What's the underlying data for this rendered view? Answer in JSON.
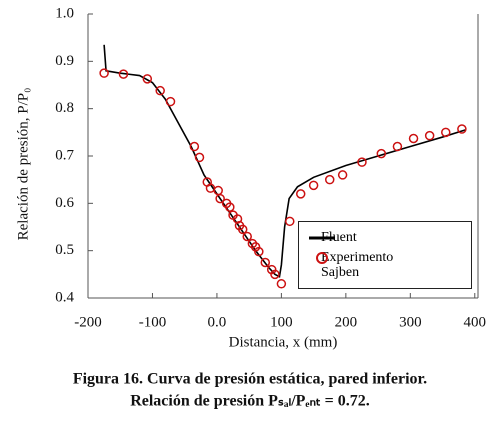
{
  "chart_data": {
    "type": "line",
    "ylabel": "Relación de presión, P/P₀",
    "xlabel": "Distancia, x (mm)",
    "caption": [
      "Figura 16. Curva de presión estática, pared inferior.",
      "Relación de presión Pₛₐₗ/Pₑₙₜ = 0.72."
    ],
    "xlim": [
      -200,
      405
    ],
    "ylim": [
      0.4,
      1.0
    ],
    "xticks": [
      -200,
      -100,
      {
        "value": 0,
        "label": "0.0"
      },
      100,
      200,
      300,
      400
    ],
    "yticks": [
      0.4,
      0.5,
      0.6,
      0.7,
      0.8,
      0.9,
      {
        "value": 1.0,
        "label": "1.0"
      }
    ],
    "series": [
      {
        "name": "Fluent",
        "color": "#000000",
        "marker": "none",
        "x": [
          -175,
          -172,
          -150,
          -120,
          -100,
          -80,
          -60,
          -40,
          -20,
          0,
          20,
          40,
          60,
          80,
          90,
          97,
          100,
          105,
          112,
          125,
          150,
          200,
          250,
          300,
          350,
          385
        ],
        "values": [
          0.935,
          0.88,
          0.875,
          0.87,
          0.855,
          0.82,
          0.77,
          0.72,
          0.66,
          0.62,
          0.58,
          0.54,
          0.5,
          0.465,
          0.45,
          0.445,
          0.47,
          0.55,
          0.61,
          0.635,
          0.655,
          0.68,
          0.7,
          0.72,
          0.74,
          0.755
        ]
      },
      {
        "name": "Experimento Sajben",
        "color": "#cc1111",
        "marker": "circle",
        "x": [
          -175,
          -145,
          -108,
          -88,
          -72,
          -35,
          -27,
          -15,
          -10,
          2,
          5,
          15,
          20,
          25,
          32,
          35,
          40,
          47,
          55,
          60,
          65,
          75,
          85,
          90,
          100,
          113,
          130,
          150,
          175,
          195,
          225,
          255,
          280,
          305,
          330,
          355,
          380
        ],
        "values": [
          0.875,
          0.873,
          0.863,
          0.838,
          0.815,
          0.72,
          0.697,
          0.645,
          0.632,
          0.627,
          0.61,
          0.6,
          0.592,
          0.575,
          0.567,
          0.553,
          0.545,
          0.53,
          0.515,
          0.508,
          0.498,
          0.475,
          0.46,
          0.45,
          0.43,
          0.562,
          0.62,
          0.638,
          0.65,
          0.66,
          0.687,
          0.705,
          0.72,
          0.737,
          0.743,
          0.75,
          0.757
        ]
      }
    ]
  }
}
